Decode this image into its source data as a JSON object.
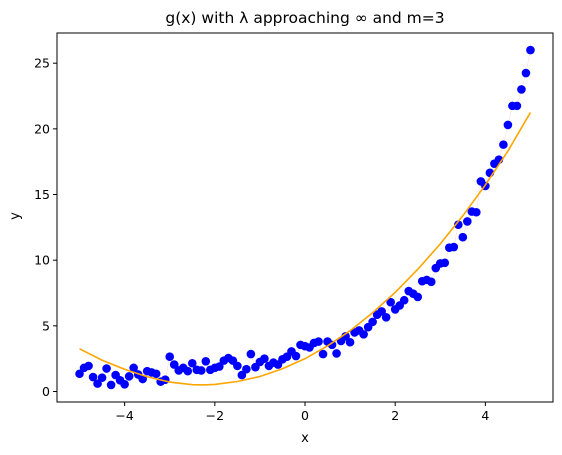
{
  "chart_data": {
    "type": "scatter",
    "title": "g(x) with λ approaching ∞ and m=3",
    "xlabel": "x",
    "ylabel": "y",
    "xlim": [
      -5.5,
      5.5
    ],
    "ylim": [
      -0.8,
      27.3
    ],
    "xticks": [
      -4,
      -2,
      0,
      2,
      4
    ],
    "yticks": [
      0,
      5,
      10,
      15,
      20,
      25
    ],
    "grid": false,
    "legend": "none",
    "series": [
      {
        "kind": "scatter",
        "color": "#0000ff",
        "points": [
          [
            -5.0,
            1.35
          ],
          [
            -4.9,
            1.8
          ],
          [
            -4.8,
            1.95
          ],
          [
            -4.7,
            1.1
          ],
          [
            -4.6,
            0.6
          ],
          [
            -4.5,
            1.05
          ],
          [
            -4.4,
            1.75
          ],
          [
            -4.3,
            0.5
          ],
          [
            -4.2,
            1.25
          ],
          [
            -4.1,
            0.85
          ],
          [
            -4.0,
            0.55
          ],
          [
            -3.9,
            1.15
          ],
          [
            -3.8,
            1.8
          ],
          [
            -3.7,
            1.3
          ],
          [
            -3.6,
            0.95
          ],
          [
            -3.5,
            1.55
          ],
          [
            -3.4,
            1.45
          ],
          [
            -3.3,
            1.35
          ],
          [
            -3.2,
            0.75
          ],
          [
            -3.1,
            0.9
          ],
          [
            -3.0,
            2.65
          ],
          [
            -2.9,
            2.05
          ],
          [
            -2.8,
            1.6
          ],
          [
            -2.7,
            1.8
          ],
          [
            -2.6,
            1.55
          ],
          [
            -2.5,
            2.15
          ],
          [
            -2.4,
            1.65
          ],
          [
            -2.3,
            1.6
          ],
          [
            -2.2,
            2.3
          ],
          [
            -2.1,
            1.65
          ],
          [
            -2.0,
            1.8
          ],
          [
            -1.9,
            1.9
          ],
          [
            -1.8,
            2.35
          ],
          [
            -1.7,
            2.55
          ],
          [
            -1.6,
            2.35
          ],
          [
            -1.5,
            1.95
          ],
          [
            -1.4,
            1.25
          ],
          [
            -1.3,
            1.7
          ],
          [
            -1.2,
            2.85
          ],
          [
            -1.1,
            1.85
          ],
          [
            -1.0,
            2.25
          ],
          [
            -0.9,
            2.5
          ],
          [
            -0.8,
            1.95
          ],
          [
            -0.7,
            2.2
          ],
          [
            -0.6,
            2.05
          ],
          [
            -0.5,
            2.45
          ],
          [
            -0.4,
            2.65
          ],
          [
            -0.3,
            3.05
          ],
          [
            -0.2,
            2.7
          ],
          [
            -0.1,
            3.55
          ],
          [
            0.0,
            3.45
          ],
          [
            0.1,
            3.35
          ],
          [
            0.2,
            3.7
          ],
          [
            0.3,
            3.8
          ],
          [
            0.4,
            2.85
          ],
          [
            0.5,
            3.8
          ],
          [
            0.6,
            3.55
          ],
          [
            0.7,
            2.9
          ],
          [
            0.8,
            3.85
          ],
          [
            0.9,
            4.2
          ],
          [
            1.0,
            3.75
          ],
          [
            1.1,
            4.5
          ],
          [
            1.2,
            4.65
          ],
          [
            1.3,
            4.35
          ],
          [
            1.4,
            4.9
          ],
          [
            1.5,
            5.3
          ],
          [
            1.6,
            5.85
          ],
          [
            1.7,
            6.1
          ],
          [
            1.8,
            5.65
          ],
          [
            1.9,
            6.8
          ],
          [
            2.0,
            6.25
          ],
          [
            2.1,
            6.55
          ],
          [
            2.2,
            6.95
          ],
          [
            2.3,
            7.65
          ],
          [
            2.4,
            7.45
          ],
          [
            2.5,
            7.2
          ],
          [
            2.6,
            8.4
          ],
          [
            2.7,
            8.5
          ],
          [
            2.8,
            8.35
          ],
          [
            2.9,
            9.4
          ],
          [
            3.0,
            9.75
          ],
          [
            3.1,
            9.8
          ],
          [
            3.2,
            10.95
          ],
          [
            3.3,
            11.0
          ],
          [
            3.4,
            12.7
          ],
          [
            3.5,
            11.75
          ],
          [
            3.6,
            12.95
          ],
          [
            3.7,
            13.7
          ],
          [
            3.8,
            13.65
          ],
          [
            3.9,
            16.0
          ],
          [
            4.0,
            15.65
          ],
          [
            4.1,
            16.65
          ],
          [
            4.2,
            17.35
          ],
          [
            4.3,
            17.65
          ],
          [
            4.4,
            18.8
          ],
          [
            4.5,
            20.3
          ],
          [
            4.6,
            21.75
          ],
          [
            4.7,
            21.75
          ],
          [
            4.8,
            23.0
          ],
          [
            4.9,
            24.25
          ],
          [
            5.0,
            26.0
          ]
        ]
      },
      {
        "kind": "line",
        "color": "#ffa500",
        "points": [
          [
            -5.0,
            3.25
          ],
          [
            -4.5,
            2.38
          ],
          [
            -4.0,
            1.69
          ],
          [
            -3.5,
            1.12
          ],
          [
            -3.0,
            0.72
          ],
          [
            -2.5,
            0.52
          ],
          [
            -2.25,
            0.5
          ],
          [
            -2.0,
            0.54
          ],
          [
            -1.5,
            0.76
          ],
          [
            -1.0,
            1.14
          ],
          [
            -0.5,
            1.73
          ],
          [
            0.0,
            2.5
          ],
          [
            0.5,
            3.47
          ],
          [
            1.0,
            4.63
          ],
          [
            1.5,
            6.0
          ],
          [
            2.0,
            7.54
          ],
          [
            2.5,
            9.3
          ],
          [
            3.0,
            11.24
          ],
          [
            3.5,
            13.38
          ],
          [
            4.0,
            15.73
          ],
          [
            4.5,
            18.31
          ],
          [
            5.0,
            21.25
          ]
        ]
      }
    ]
  }
}
